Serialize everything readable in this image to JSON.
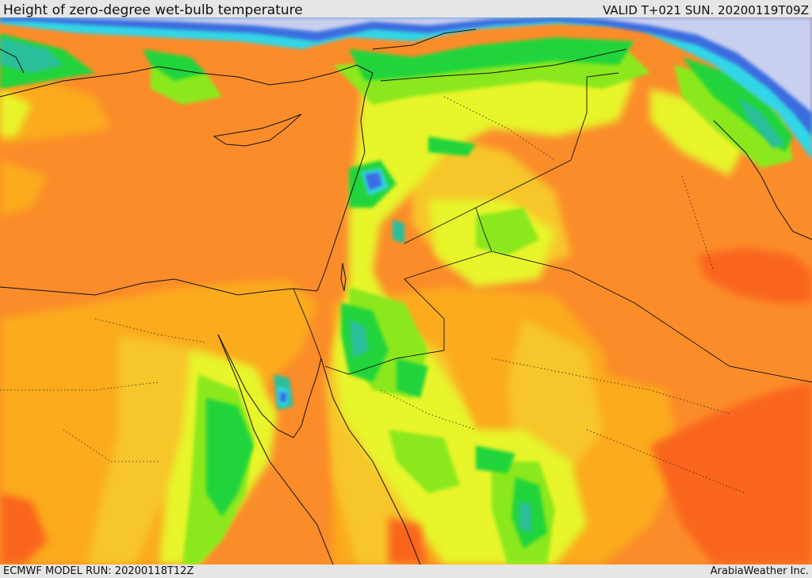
{
  "header": {
    "title": "Height of zero-degree wet-bulb temperature",
    "valid": "VALID T+021 SUN. 20200119T09Z"
  },
  "footer": {
    "model_run": "ECMWF MODEL RUN: 20200118T12Z",
    "credit": "ArabiaWeather Inc."
  },
  "map": {
    "region": "Eastern Mediterranean, Egypt, Levant, Iraq and northern Arabia",
    "palette": {
      "lowest": "#c9cfef",
      "blue": "#3a6de0",
      "cyan": "#33d6e6",
      "teal": "#2bbf9a",
      "green": "#22d43a",
      "light_green": "#8be81e",
      "yellow_green": "#e7f52a",
      "yellow": "#f7c62a",
      "orange_yellow": "#fbab1e",
      "orange": "#fb8c2a",
      "dark_orange": "#f9651c",
      "red_orange": "#f6511a"
    }
  }
}
